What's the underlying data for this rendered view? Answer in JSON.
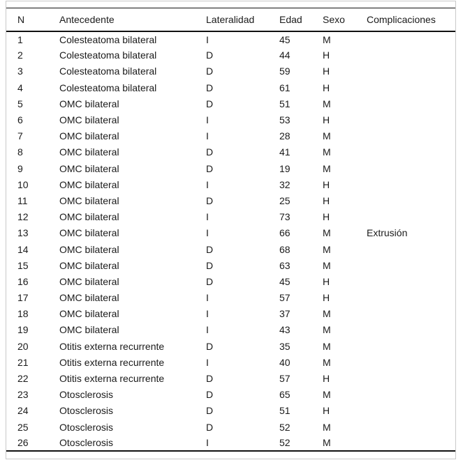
{
  "table": {
    "columns": [
      "N",
      "Antecedente",
      "Lateralidad",
      "Edad",
      "Sexo",
      "Complicaciones"
    ],
    "rows": [
      [
        "1",
        "Colesteatoma bilateral",
        "I",
        "45",
        "M",
        ""
      ],
      [
        "2",
        "Colesteatoma bilateral",
        "D",
        "44",
        "H",
        ""
      ],
      [
        "3",
        "Colesteatoma bilateral",
        "D",
        "59",
        "H",
        ""
      ],
      [
        "4",
        "Colesteatoma bilateral",
        "D",
        "61",
        "H",
        ""
      ],
      [
        "5",
        "OMC bilateral",
        "D",
        "51",
        "M",
        ""
      ],
      [
        "6",
        "OMC bilateral",
        "I",
        "53",
        "H",
        ""
      ],
      [
        "7",
        "OMC bilateral",
        "I",
        "28",
        "M",
        ""
      ],
      [
        "8",
        "OMC bilateral",
        "D",
        "41",
        "M",
        ""
      ],
      [
        "9",
        "OMC bilateral",
        "D",
        "19",
        "M",
        ""
      ],
      [
        "10",
        "OMC bilateral",
        "I",
        "32",
        "H",
        ""
      ],
      [
        "11",
        "OMC bilateral",
        "D",
        "25",
        "H",
        ""
      ],
      [
        "12",
        "OMC bilateral",
        "I",
        "73",
        "H",
        ""
      ],
      [
        "13",
        "OMC bilateral",
        "I",
        "66",
        "M",
        "Extrusión"
      ],
      [
        "14",
        "OMC bilateral",
        "D",
        "68",
        "M",
        ""
      ],
      [
        "15",
        "OMC bilateral",
        "D",
        "63",
        "M",
        ""
      ],
      [
        "16",
        "OMC bilateral",
        "D",
        "45",
        "H",
        ""
      ],
      [
        "17",
        "OMC bilateral",
        "I",
        "57",
        "H",
        ""
      ],
      [
        "18",
        "OMC bilateral",
        "I",
        "37",
        "M",
        ""
      ],
      [
        "19",
        "OMC bilateral",
        "I",
        "43",
        "M",
        ""
      ],
      [
        "20",
        "Otitis externa recurrente",
        "D",
        "35",
        "M",
        ""
      ],
      [
        "21",
        "Otitis externa recurrente",
        "I",
        "40",
        "M",
        ""
      ],
      [
        "22",
        "Otitis externa recurrente",
        "D",
        "57",
        "H",
        ""
      ],
      [
        "23",
        "Otosclerosis",
        "D",
        "65",
        "M",
        ""
      ],
      [
        "24",
        "Otosclerosis",
        "D",
        "51",
        "H",
        ""
      ],
      [
        "25",
        "Otosclerosis",
        "D",
        "52",
        "M",
        ""
      ],
      [
        "26",
        "Otosclerosis",
        "I",
        "52",
        "M",
        ""
      ]
    ]
  },
  "colors": {
    "rule": "#111111",
    "frame_border": "#c9c9c9",
    "text": "#1a1a1a",
    "background": "#ffffff"
  }
}
